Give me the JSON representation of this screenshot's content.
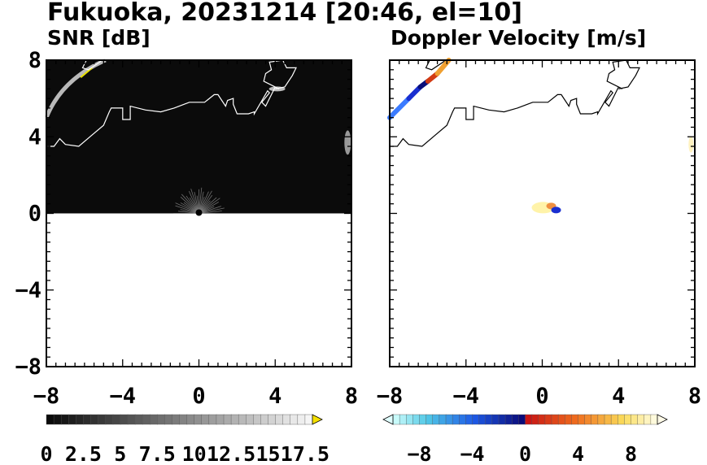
{
  "figure": {
    "title": "Fukuoka, 20231214 [20:46, el=10]"
  },
  "chart_data": [
    {
      "type": "heatmap",
      "title": "SNR [dB]",
      "xlim": [
        -8,
        8
      ],
      "ylim": [
        -8,
        8
      ],
      "xticks": [
        "−8",
        "−4",
        "0",
        "4",
        "8"
      ],
      "yticks": [
        "8",
        "4",
        "0",
        "−4",
        "−8"
      ],
      "data_extent_y": [
        0,
        8
      ],
      "colorbar": {
        "range": [
          0,
          18
        ],
        "ticks": [
          "0",
          "2.5",
          "5",
          "7.5",
          "10",
          "12.5",
          "15",
          "17.5"
        ],
        "extend": "max",
        "colormap": "gray",
        "extend_color": "#f5e000"
      },
      "features": [
        "coastline",
        "ground clutter near origin"
      ]
    },
    {
      "type": "heatmap",
      "title": "Doppler Velocity [m/s]",
      "xlim": [
        -8,
        8
      ],
      "ylim": [
        -8,
        8
      ],
      "xticks": [
        "−8",
        "−4",
        "0",
        "4",
        "8"
      ],
      "yticks": [
        "8",
        "4",
        "0",
        "−4",
        "−8"
      ],
      "colorbar": {
        "range": [
          -10,
          10
        ],
        "ticks": [
          "−8",
          "−4",
          "0",
          "4",
          "8"
        ],
        "extend": "both",
        "colormap": "diverging blue-white-red-yellow"
      },
      "features": [
        "coastline",
        "echo band toward blue and orange in upper left",
        "small echo near origin"
      ]
    }
  ]
}
